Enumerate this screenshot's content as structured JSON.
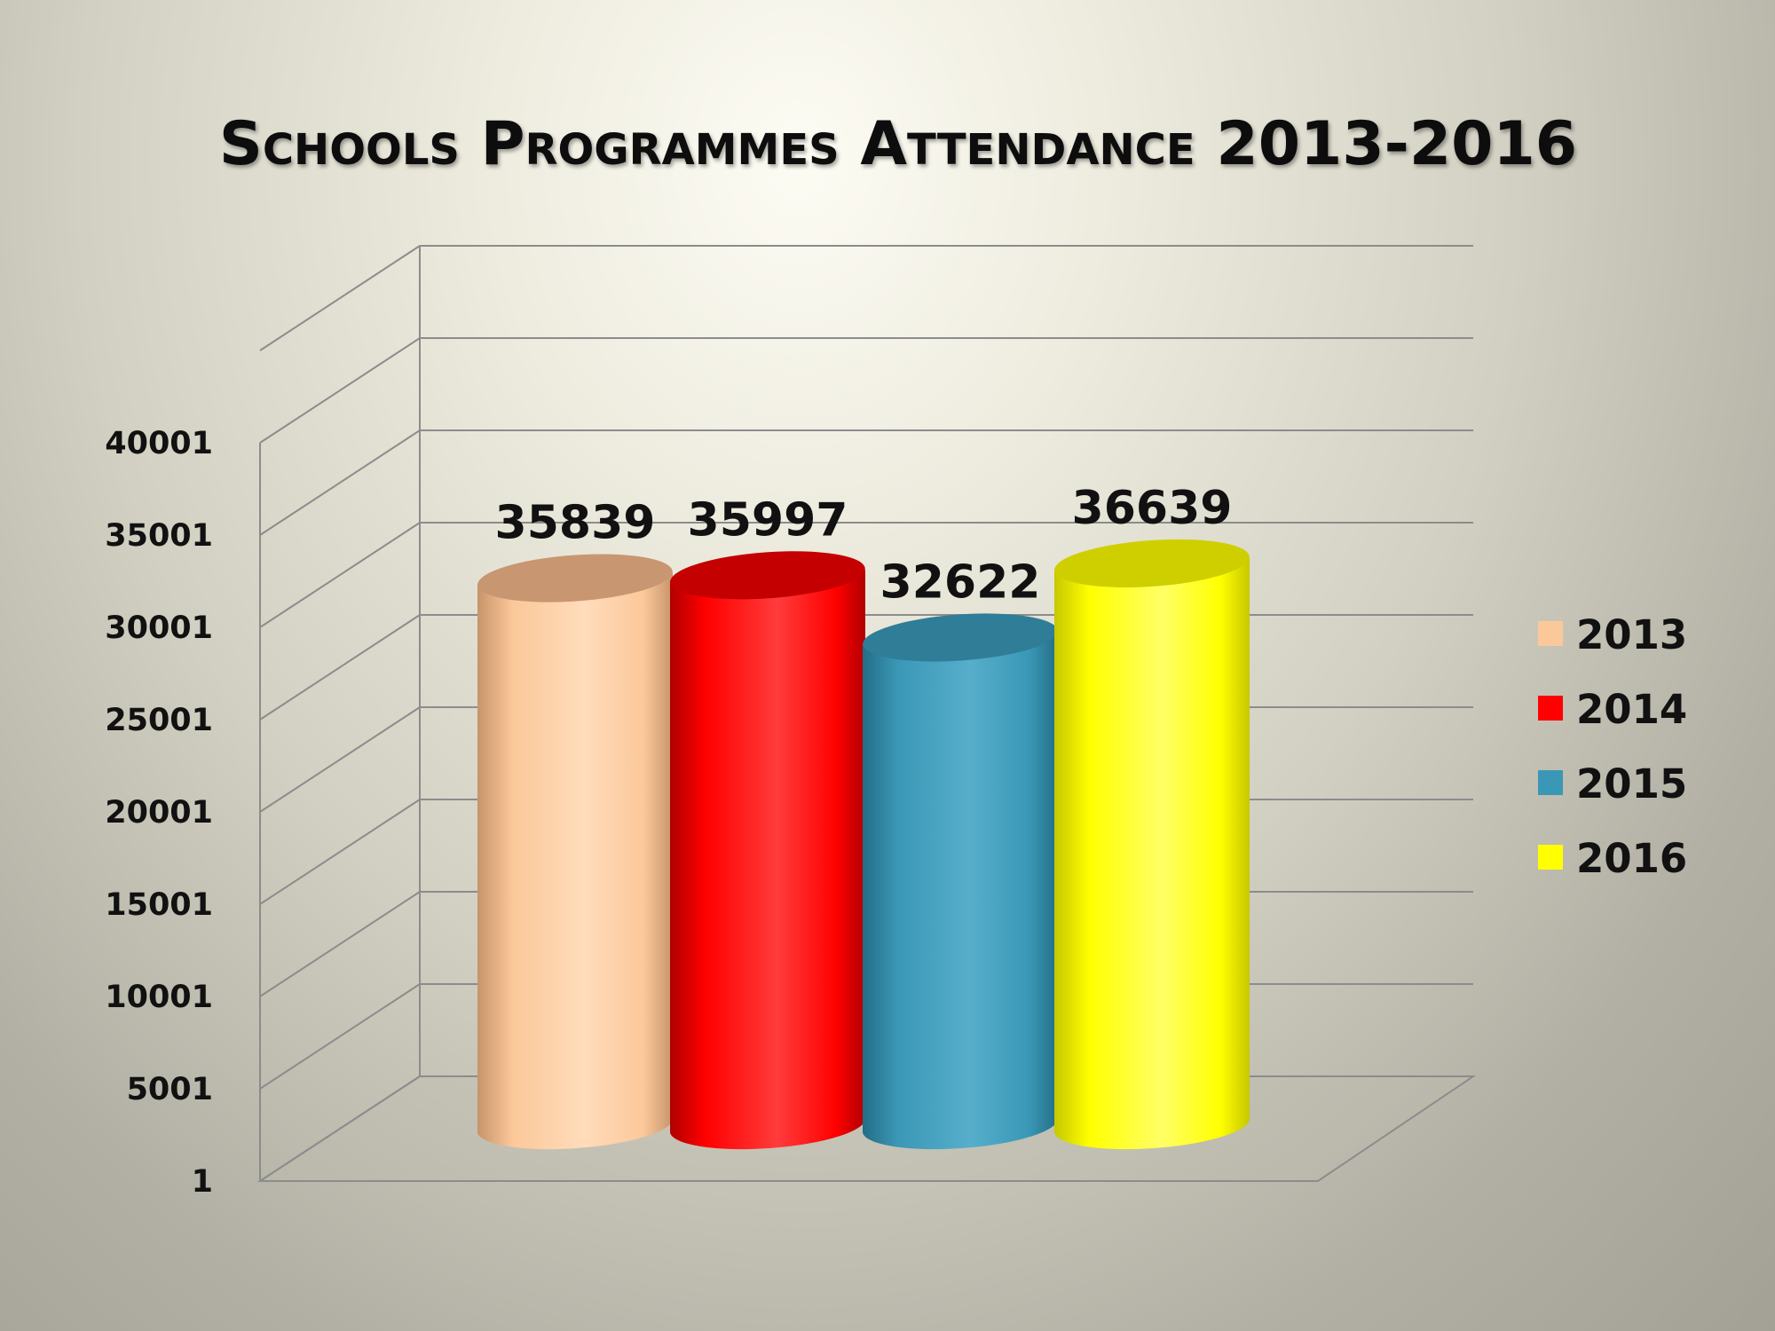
{
  "chart_data": {
    "type": "bar",
    "title": "Schools Programmes Attendance 2013-2016",
    "categories": [
      "2013",
      "2014",
      "2015",
      "2016"
    ],
    "values": [
      35839,
      35997,
      32622,
      36639
    ],
    "data_labels": [
      "35839",
      "35997",
      "32622",
      "36639"
    ],
    "y_ticks": [
      "1",
      "5001",
      "10001",
      "15001",
      "20001",
      "25001",
      "30001",
      "35001",
      "40001"
    ],
    "y_tick_values": [
      1,
      5001,
      10001,
      15001,
      20001,
      25001,
      30001,
      35001,
      40001
    ],
    "ylim": [
      1,
      45001
    ],
    "xlabel": "",
    "ylabel": "",
    "legend_position": "right",
    "legend": [
      {
        "name": "2013",
        "color": "#fbc89a"
      },
      {
        "name": "2014",
        "color": "#ff0000"
      },
      {
        "name": "2015",
        "color": "#3a98b6"
      },
      {
        "name": "2016",
        "color": "#ffff00"
      }
    ],
    "style": "3d-cylinder",
    "grid": true
  }
}
